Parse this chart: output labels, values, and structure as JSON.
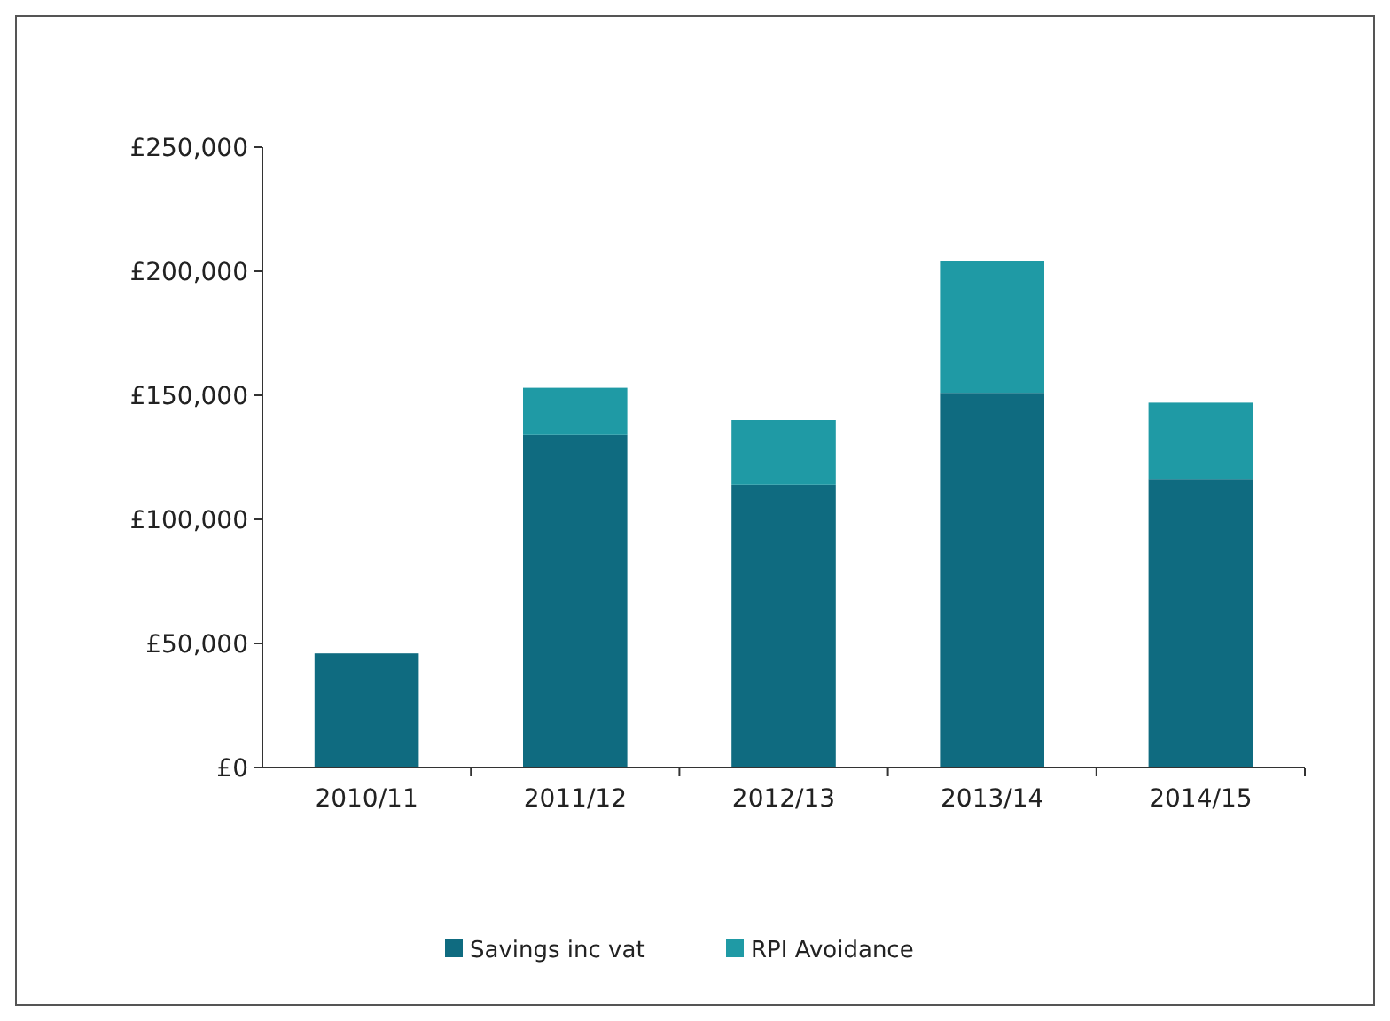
{
  "chart_data": {
    "type": "bar",
    "stacked": true,
    "categories": [
      "2010/11",
      "2011/12",
      "2012/13",
      "2013/14",
      "2014/15"
    ],
    "series": [
      {
        "name": "Savings inc vat",
        "color": "#0f6b80",
        "values": [
          46000,
          134000,
          114000,
          151000,
          116000
        ]
      },
      {
        "name": "RPI Avoidance",
        "color": "#1f9aa5",
        "values": [
          0,
          19000,
          26000,
          53000,
          31000
        ]
      }
    ],
    "ylim": [
      0,
      250000
    ],
    "yticks": [
      {
        "value": 0,
        "label": "£0"
      },
      {
        "value": 50000,
        "label": "£50,000"
      },
      {
        "value": 100000,
        "label": "£100,000"
      },
      {
        "value": 150000,
        "label": "£150,000"
      },
      {
        "value": 200000,
        "label": "£200,000"
      },
      {
        "value": 250000,
        "label": "£250,000"
      }
    ],
    "grid": false,
    "legend": "bottom"
  }
}
